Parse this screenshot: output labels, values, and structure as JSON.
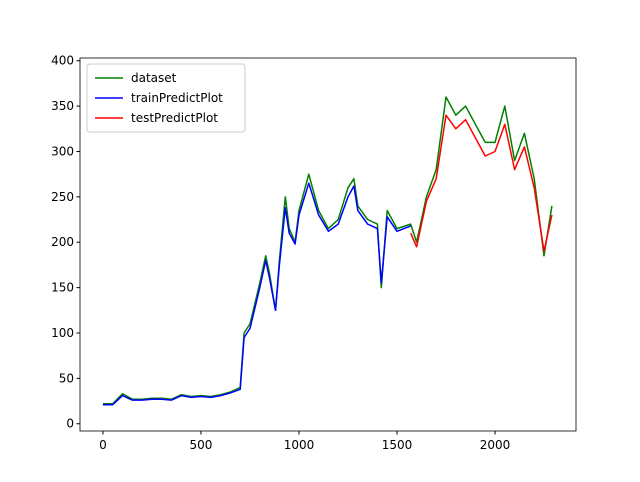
{
  "chart_data": {
    "type": "line",
    "x": [
      0,
      50,
      100,
      150,
      200,
      250,
      300,
      350,
      400,
      450,
      500,
      550,
      600,
      650,
      700,
      720,
      750,
      800,
      830,
      850,
      880,
      900,
      930,
      950,
      980,
      1000,
      1050,
      1100,
      1150,
      1200,
      1250,
      1280,
      1300,
      1350,
      1400,
      1420,
      1450,
      1500,
      1570,
      1600,
      1650,
      1700,
      1750,
      1800,
      1850,
      1900,
      1950,
      2000,
      2050,
      2100,
      2150,
      2200,
      2250,
      2290
    ],
    "series": [
      {
        "name": "dataset",
        "color": "#008000",
        "values": [
          22,
          22,
          33,
          27,
          27,
          28,
          28,
          27,
          32,
          30,
          31,
          30,
          32,
          35,
          40,
          100,
          110,
          155,
          185,
          165,
          125,
          180,
          250,
          215,
          200,
          235,
          275,
          235,
          215,
          225,
          260,
          270,
          240,
          225,
          220,
          150,
          235,
          215,
          220,
          200,
          250,
          280,
          360,
          340,
          350,
          330,
          310,
          310,
          350,
          290,
          320,
          270,
          185,
          240
        ]
      },
      {
        "name": "trainPredictPlot",
        "color": "#0000ff",
        "values": [
          21,
          21,
          31,
          26,
          26,
          27,
          27,
          26,
          31,
          29,
          30,
          29,
          31,
          34,
          38,
          95,
          105,
          150,
          180,
          160,
          125,
          175,
          238,
          210,
          198,
          230,
          265,
          230,
          212,
          220,
          250,
          262,
          235,
          220,
          215,
          155,
          228,
          212,
          218,
          null,
          null,
          null,
          null,
          null,
          null,
          null,
          null,
          null,
          null,
          null,
          null,
          null,
          null,
          null
        ]
      },
      {
        "name": "testPredictPlot",
        "color": "#ff0000",
        "values": [
          null,
          null,
          null,
          null,
          null,
          null,
          null,
          null,
          null,
          null,
          null,
          null,
          null,
          null,
          null,
          null,
          null,
          null,
          null,
          null,
          null,
          null,
          null,
          null,
          null,
          null,
          null,
          null,
          null,
          null,
          null,
          null,
          null,
          null,
          null,
          null,
          null,
          null,
          210,
          195,
          245,
          270,
          340,
          325,
          335,
          315,
          295,
          300,
          330,
          280,
          305,
          260,
          190,
          230
        ]
      }
    ],
    "xlim": [
      -117,
      2413
    ],
    "ylim": [
      -8,
      403
    ],
    "xticks": [
      0,
      500,
      1000,
      1500,
      2000
    ],
    "yticks": [
      0,
      50,
      100,
      150,
      200,
      250,
      300,
      350,
      400
    ],
    "legend": "upper left"
  }
}
